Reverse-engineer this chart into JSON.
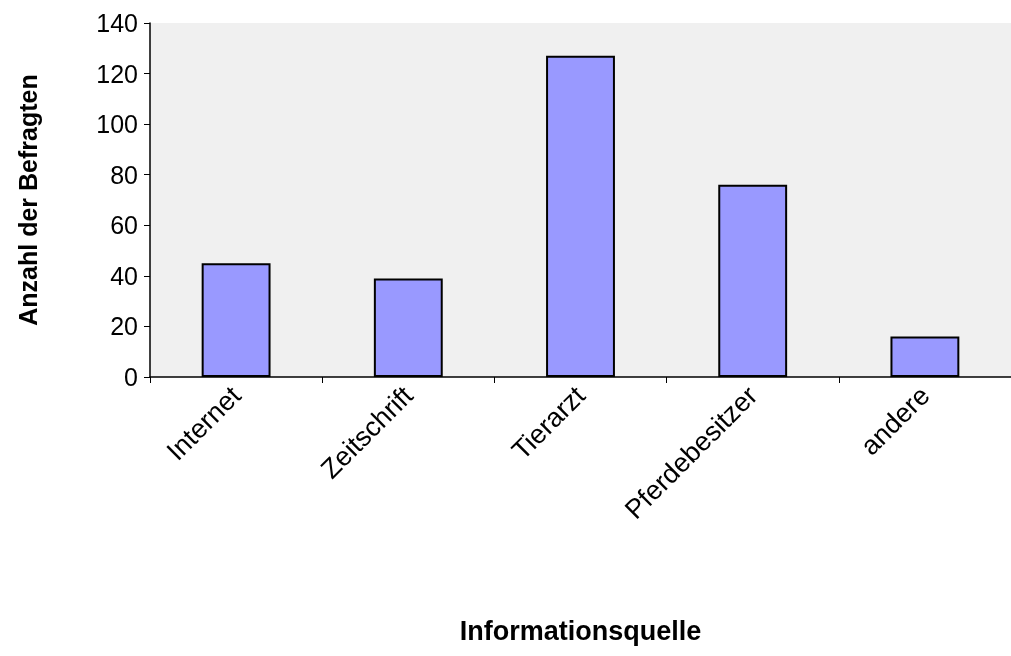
{
  "chart_data": {
    "type": "bar",
    "xlabel": "Informationsquelle",
    "ylabel": "Anzahl der Befragten",
    "categories": [
      "Internet",
      "Zeitschrift",
      "Tierarzt",
      "Pferdebesitzer",
      "andere"
    ],
    "values": [
      45,
      39,
      127,
      76,
      16
    ],
    "color": "#9999ff",
    "ylim": [
      0,
      140
    ],
    "yticks": [
      0,
      20,
      40,
      60,
      80,
      100,
      120,
      140
    ],
    "grid": false
  }
}
